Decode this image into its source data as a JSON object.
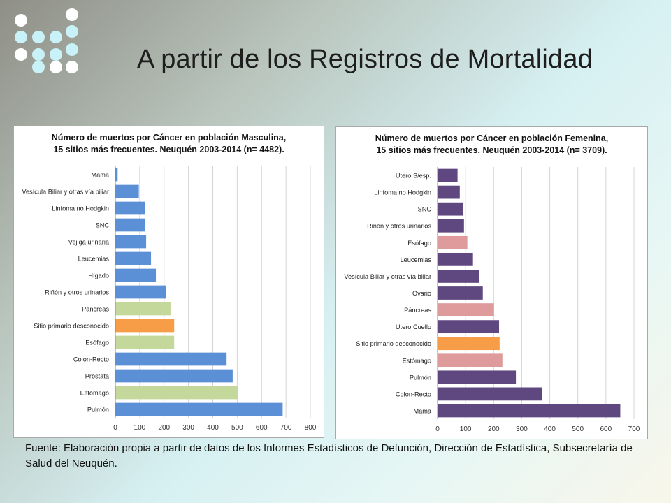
{
  "slide": {
    "title": "A partir de los Registros de Mortalidad",
    "source_note": "Fuente: Elaboración propia a partir de datos de los Informes Estadísticos de Defunción, Dirección de Estadística, Subsecretaría de Salud del Neuquén."
  },
  "colors": {
    "dot_white": "#ffffff",
    "dot_cyan": "#c8f2f8",
    "male_blue": "#5b8fd6",
    "male_green": "#c5d89c",
    "unknown_orange": "#f79c47",
    "female_purple": "#5f4780",
    "female_pink": "#df9b9b",
    "grid": "#d4d4d4"
  },
  "chart_data": [
    {
      "type": "bar",
      "orientation": "horizontal",
      "title_lines": [
        "Número de muertos por Cáncer en población Masculina,",
        "15 sitios más frecuentes. Neuquén 2003-2014 (n= 4482)."
      ],
      "categories": [
        "Mama",
        "Vesícula Biliar y otras vía biliar",
        "Linfoma no Hodgkin",
        "SNC",
        "Vejiga urinaria",
        "Leucemias",
        "Hígado",
        "Riñón y otros urinarios",
        "Páncreas",
        "Sitio primario desconocido",
        "Esófago",
        "Colon-Recto",
        "Próstata",
        "Estómago",
        "Pulmón"
      ],
      "values": [
        8,
        95,
        120,
        120,
        125,
        145,
        165,
        205,
        225,
        240,
        240,
        455,
        480,
        500,
        685
      ],
      "bar_colors": [
        "#5b8fd6",
        "#5b8fd6",
        "#5b8fd6",
        "#5b8fd6",
        "#5b8fd6",
        "#5b8fd6",
        "#5b8fd6",
        "#5b8fd6",
        "#c5d89c",
        "#f79c47",
        "#c5d89c",
        "#5b8fd6",
        "#5b8fd6",
        "#c5d89c",
        "#5b8fd6"
      ],
      "xlim": [
        0,
        800
      ],
      "xticks": [
        0,
        100,
        200,
        300,
        400,
        500,
        600,
        700,
        800
      ],
      "grid": true,
      "legend": "none"
    },
    {
      "type": "bar",
      "orientation": "horizontal",
      "title_lines": [
        "Número de muertos por Cáncer en población Femenina,",
        "15 sitios más frecuentes. Neuquén 2003-2014 (n= 3709)."
      ],
      "categories": [
        "Utero S/esp.",
        "Linfoma no Hodgkin",
        "SNC",
        "Riñón y otros urinarios",
        "Esófago",
        "Leucemias",
        "Vesícula Biliar y otras vía biliar",
        "Ovario",
        "Páncreas",
        "Utero Cuello",
        "Sitio primario desconocido",
        "Estómago",
        "Pulmón",
        "Colon-Recto",
        "Mama"
      ],
      "values": [
        70,
        78,
        90,
        93,
        105,
        125,
        148,
        160,
        200,
        218,
        220,
        230,
        278,
        370,
        650
      ],
      "bar_colors": [
        "#5f4780",
        "#5f4780",
        "#5f4780",
        "#5f4780",
        "#df9b9b",
        "#5f4780",
        "#5f4780",
        "#5f4780",
        "#df9b9b",
        "#5f4780",
        "#f79c47",
        "#df9b9b",
        "#5f4780",
        "#5f4780",
        "#5f4780"
      ],
      "xlim": [
        0,
        700
      ],
      "xticks": [
        0,
        100,
        200,
        300,
        400,
        500,
        600,
        700
      ],
      "grid": true,
      "legend": "none"
    }
  ]
}
